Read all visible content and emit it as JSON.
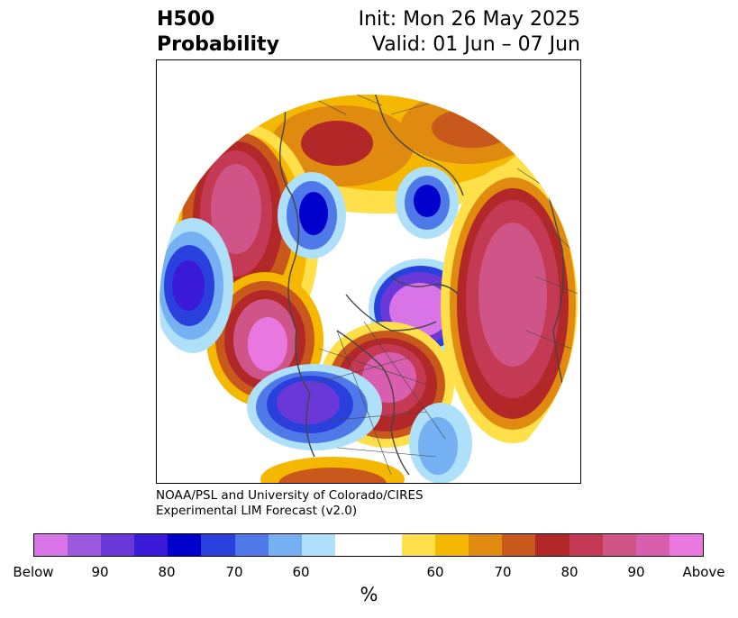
{
  "title": {
    "left_line1": "H500",
    "left_line2": "Probability",
    "right_line1": "Init: Mon 26 May 2025",
    "right_line2": "Valid: 01 Jun – 07 Jun"
  },
  "credits": {
    "line1": "NOAA/PSL and University of Colorado/CIRES",
    "line2": "Experimental LIM Forecast (v2.0)"
  },
  "colorbar": {
    "colors": [
      "#d874e8",
      "#9b59e0",
      "#6a38d8",
      "#3a1ad8",
      "#0000cc",
      "#2a40dc",
      "#4f78e8",
      "#74b0f2",
      "#aee0fa",
      "#ffffff",
      "#ffffff",
      "#ffe04a",
      "#f5b800",
      "#e08a10",
      "#c9581c",
      "#b22828",
      "#c43a54",
      "#cf5588",
      "#d95fae",
      "#e878e0"
    ],
    "ticks": [
      "Below",
      "90",
      "80",
      "70",
      "60",
      "60",
      "70",
      "80",
      "90",
      "Above"
    ],
    "unit": "%"
  },
  "map": {
    "description_icon": "polar-stereographic-map-icon"
  }
}
